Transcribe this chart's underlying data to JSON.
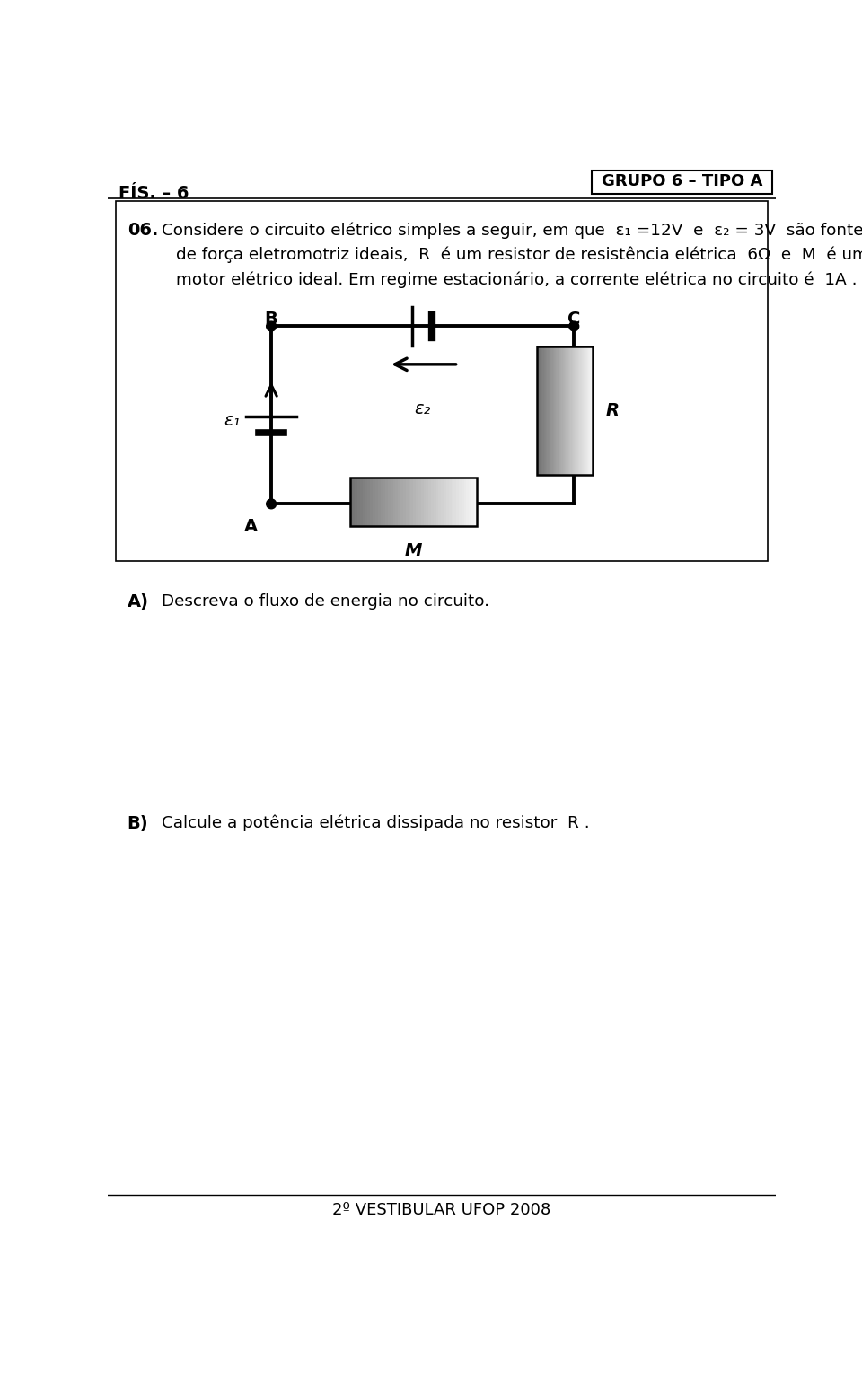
{
  "page_title_left": "FÍS. – 6",
  "page_title_right": "GRUPO 6 – TIPO A",
  "question_number": "06.",
  "section_A_label": "A)",
  "section_A_text": "Descreva o fluxo de energia no circuito.",
  "section_B_label": "B)",
  "section_B_text": "Calcule a potência elétrica dissipada no resistor  R .",
  "footer_text": "2º VESTIBULAR UFOP 2008",
  "node_B_label": "B",
  "node_C_label": "C",
  "node_A_label": "A",
  "node_M_label": "M",
  "node_R_label": "R",
  "eps1_label": "ε₁",
  "eps2_label": "ε₂",
  "bg_color": "#ffffff",
  "text_color": "#000000"
}
